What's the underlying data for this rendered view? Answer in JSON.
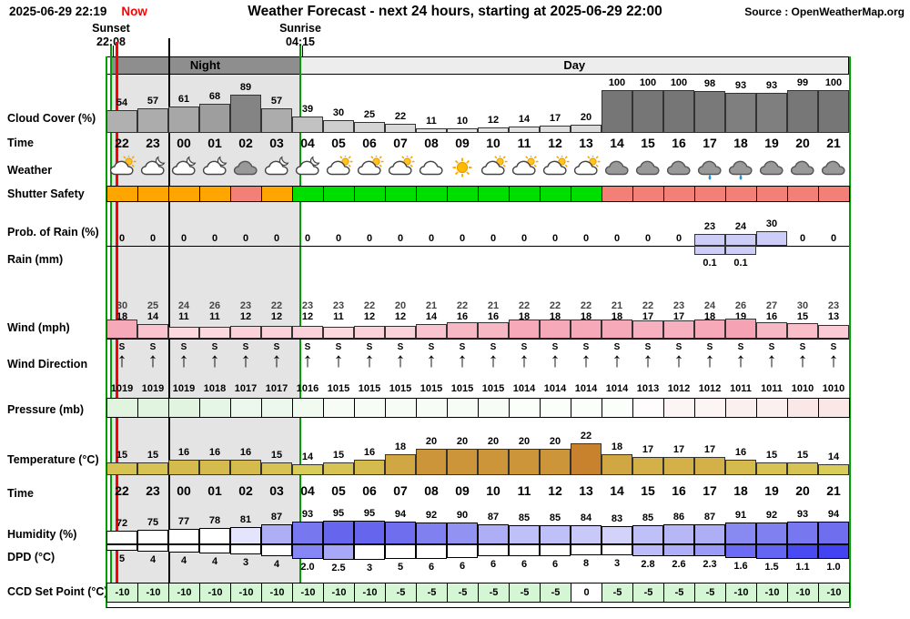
{
  "header": {
    "timestamp": "2025-06-29 22:19",
    "now_label": "Now",
    "title": "Weather Forecast - next 24 hours, starting at 2025-06-29 22:00",
    "source": "Source : OpenWeatherMap.org",
    "sunset_label": "Sunset",
    "sunset_time": "22:08",
    "sunrise_label": "Sunrise",
    "sunrise_time": "04:15",
    "night_label": "Night",
    "day_label": "Day"
  },
  "row_labels": {
    "cloud_cover": "Cloud Cover (%)",
    "time": "Time",
    "weather": "Weather",
    "shutter_safety": "Shutter Safety",
    "prob_rain": "Prob. of Rain (%)",
    "rain": "Rain (mm)",
    "wind": "Wind (mph)",
    "wind_direction": "Wind Direction",
    "pressure": "Pressure (mb)",
    "temperature": "Temperature (°C)",
    "time2": "Time",
    "humidity": "Humidity (%)",
    "dpd": "DPD (°C)",
    "ccd": "CCD Set Point (°C)"
  },
  "colors": {
    "now_line": "#FF0000",
    "sun_line": "#00A000",
    "night_band": "#8E8E8E",
    "day_band": "#EDEDED",
    "night_shade": "#E4E4E4",
    "shutter": {
      "orange": "#FFA500",
      "red": "#F28076",
      "green": "#00DE00"
    },
    "rain_bar": "#CDCDF8",
    "ccd_green": "#D5F6D5"
  },
  "chart_data": {
    "type": "table",
    "title": "Weather Forecast - next 24 hours, starting at 2025-06-29 22:00",
    "hours": [
      "22",
      "23",
      "00",
      "01",
      "02",
      "03",
      "04",
      "05",
      "06",
      "07",
      "08",
      "09",
      "10",
      "11",
      "12",
      "13",
      "14",
      "15",
      "16",
      "17",
      "18",
      "19",
      "20",
      "21"
    ],
    "cloud_cover_pct": [
      54,
      57,
      61,
      68,
      89,
      57,
      39,
      30,
      25,
      22,
      11,
      10,
      12,
      14,
      17,
      20,
      100,
      100,
      100,
      98,
      93,
      93,
      99,
      100
    ],
    "weather_icons": [
      "sun-cloud",
      "moon-cloud",
      "moon-cloud",
      "moon-cloud",
      "dark-cloud",
      "moon-cloud",
      "moon-cloud",
      "sun-cloud",
      "sun-cloud",
      "sun-cloud",
      "cloud",
      "sun",
      "sun-cloud",
      "sun-cloud",
      "sun-cloud",
      "sun-cloud",
      "dark-cloud",
      "dark-cloud",
      "dark-cloud",
      "rain-cloud",
      "rain-cloud",
      "dark-cloud",
      "dark-cloud",
      "dark-cloud"
    ],
    "shutter_safety": [
      "orange",
      "orange",
      "orange",
      "orange",
      "red",
      "orange",
      "green",
      "green",
      "green",
      "green",
      "green",
      "green",
      "green",
      "green",
      "green",
      "green",
      "red",
      "red",
      "red",
      "red",
      "red",
      "red",
      "red",
      "red"
    ],
    "prob_rain_pct": [
      0,
      0,
      0,
      0,
      0,
      0,
      0,
      0,
      0,
      0,
      0,
      0,
      0,
      0,
      0,
      0,
      0,
      0,
      0,
      23,
      24,
      30,
      0,
      0
    ],
    "rain_mm": [
      0,
      0,
      0,
      0,
      0,
      0,
      0,
      0,
      0,
      0,
      0,
      0,
      0,
      0,
      0,
      0,
      0,
      0,
      0,
      0.1,
      0.1,
      0,
      0,
      0
    ],
    "wind_gust_mph": [
      30,
      25,
      24,
      26,
      23,
      22,
      23,
      23,
      22,
      20,
      21,
      22,
      21,
      22,
      22,
      22,
      21,
      22,
      23,
      24,
      26,
      27,
      30,
      23
    ],
    "wind_mph": [
      18,
      14,
      11,
      11,
      12,
      12,
      12,
      11,
      12,
      12,
      14,
      16,
      16,
      18,
      18,
      18,
      18,
      17,
      17,
      18,
      19,
      16,
      15,
      13
    ],
    "wind_dir": [
      "S",
      "S",
      "S",
      "S",
      "S",
      "S",
      "S",
      "S",
      "S",
      "S",
      "S",
      "S",
      "S",
      "S",
      "S",
      "S",
      "S",
      "S",
      "S",
      "S",
      "S",
      "S",
      "S",
      "S"
    ],
    "pressure_mb": [
      1019,
      1019,
      1019,
      1018,
      1017,
      1017,
      1016,
      1015,
      1015,
      1015,
      1015,
      1015,
      1015,
      1014,
      1014,
      1014,
      1014,
      1013,
      1012,
      1012,
      1011,
      1011,
      1010,
      1010
    ],
    "temperature_c": [
      15,
      15,
      16,
      16,
      16,
      15,
      14,
      15,
      16,
      18,
      20,
      20,
      20,
      20,
      20,
      22,
      18,
      17,
      17,
      17,
      16,
      15,
      15,
      14
    ],
    "humidity_pct": [
      72,
      75,
      77,
      78,
      81,
      87,
      93,
      95,
      95,
      94,
      92,
      90,
      87,
      85,
      85,
      84,
      83,
      85,
      86,
      87,
      91,
      92,
      93,
      94
    ],
    "dpd_c": [
      "5",
      "4",
      "4",
      "4",
      "3",
      "4",
      "2.0",
      "2.5",
      "3",
      "5",
      "6",
      "6",
      "6",
      "6",
      "6",
      "8",
      "3",
      "2.8",
      "2.6",
      "2.3",
      "1.6",
      "1.5",
      "1.1",
      "1.0"
    ],
    "ccd_set_point_c": [
      -10,
      -10,
      -10,
      -10,
      -10,
      -10,
      -10,
      -10,
      -10,
      -5,
      -5,
      -5,
      -5,
      -5,
      -5,
      0,
      -5,
      -5,
      -5,
      -5,
      -10,
      -10,
      -10,
      -10
    ]
  }
}
